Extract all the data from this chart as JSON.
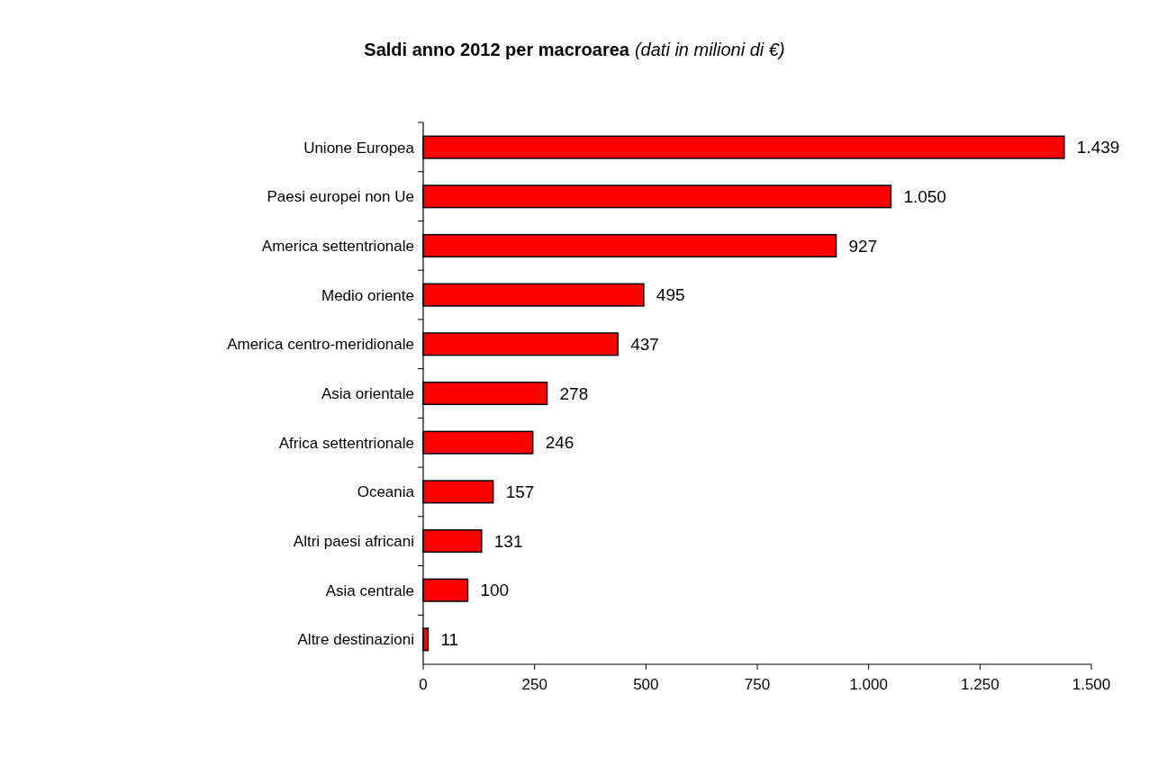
{
  "chart_data": {
    "type": "bar",
    "orientation": "horizontal",
    "title": "Saldi anno 2012 per macroarea",
    "subtitle": "(dati in milioni di €)",
    "categories": [
      "Unione Europea",
      "Paesi europei non Ue",
      "America settentrionale",
      "Medio oriente",
      "America centro-meridionale",
      "Asia orientale",
      "Africa settentrionale",
      "Oceania",
      "Altri paesi africani",
      "Asia centrale",
      "Altre destinazioni"
    ],
    "values": [
      1439,
      1050,
      927,
      495,
      437,
      278,
      246,
      157,
      131,
      100,
      11
    ],
    "value_labels": [
      "1.439",
      "1.050",
      "927",
      "495",
      "437",
      "278",
      "246",
      "157",
      "131",
      "100",
      "11"
    ],
    "color": "#ff0000",
    "xlim": [
      0,
      1500
    ],
    "xticks": [
      0,
      250,
      500,
      750,
      {
        "value": 1000,
        "label": "1.000"
      },
      {
        "value": 1250,
        "label": "1.250"
      },
      {
        "value": 1500,
        "label": "1.500"
      }
    ]
  }
}
